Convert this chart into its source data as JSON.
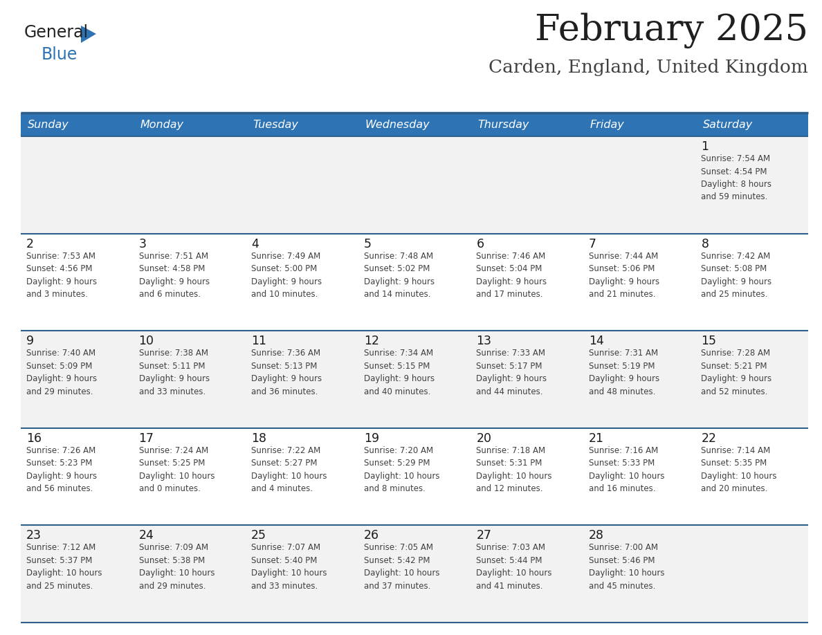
{
  "title": "February 2025",
  "subtitle": "Carden, England, United Kingdom",
  "header_bg_color": "#2E74B5",
  "header_text_color": "#FFFFFF",
  "days_of_week": [
    "Sunday",
    "Monday",
    "Tuesday",
    "Wednesday",
    "Thursday",
    "Friday",
    "Saturday"
  ],
  "title_color": "#1F1F1F",
  "subtitle_color": "#404040",
  "cell_bg_row0": "#F2F2F2",
  "cell_bg_row1": "#FFFFFF",
  "cell_bg_row2": "#F2F2F2",
  "cell_bg_row3": "#FFFFFF",
  "cell_bg_row4": "#F2F2F2",
  "day_number_color": "#1a1a1a",
  "info_text_color": "#404040",
  "separator_color": "#2E5F8A",
  "logo_triangle_color": "#2E74B5",
  "calendar_data": [
    [
      {
        "day": null,
        "info": null
      },
      {
        "day": null,
        "info": null
      },
      {
        "day": null,
        "info": null
      },
      {
        "day": null,
        "info": null
      },
      {
        "day": null,
        "info": null
      },
      {
        "day": null,
        "info": null
      },
      {
        "day": 1,
        "info": "Sunrise: 7:54 AM\nSunset: 4:54 PM\nDaylight: 8 hours\nand 59 minutes."
      }
    ],
    [
      {
        "day": 2,
        "info": "Sunrise: 7:53 AM\nSunset: 4:56 PM\nDaylight: 9 hours\nand 3 minutes."
      },
      {
        "day": 3,
        "info": "Sunrise: 7:51 AM\nSunset: 4:58 PM\nDaylight: 9 hours\nand 6 minutes."
      },
      {
        "day": 4,
        "info": "Sunrise: 7:49 AM\nSunset: 5:00 PM\nDaylight: 9 hours\nand 10 minutes."
      },
      {
        "day": 5,
        "info": "Sunrise: 7:48 AM\nSunset: 5:02 PM\nDaylight: 9 hours\nand 14 minutes."
      },
      {
        "day": 6,
        "info": "Sunrise: 7:46 AM\nSunset: 5:04 PM\nDaylight: 9 hours\nand 17 minutes."
      },
      {
        "day": 7,
        "info": "Sunrise: 7:44 AM\nSunset: 5:06 PM\nDaylight: 9 hours\nand 21 minutes."
      },
      {
        "day": 8,
        "info": "Sunrise: 7:42 AM\nSunset: 5:08 PM\nDaylight: 9 hours\nand 25 minutes."
      }
    ],
    [
      {
        "day": 9,
        "info": "Sunrise: 7:40 AM\nSunset: 5:09 PM\nDaylight: 9 hours\nand 29 minutes."
      },
      {
        "day": 10,
        "info": "Sunrise: 7:38 AM\nSunset: 5:11 PM\nDaylight: 9 hours\nand 33 minutes."
      },
      {
        "day": 11,
        "info": "Sunrise: 7:36 AM\nSunset: 5:13 PM\nDaylight: 9 hours\nand 36 minutes."
      },
      {
        "day": 12,
        "info": "Sunrise: 7:34 AM\nSunset: 5:15 PM\nDaylight: 9 hours\nand 40 minutes."
      },
      {
        "day": 13,
        "info": "Sunrise: 7:33 AM\nSunset: 5:17 PM\nDaylight: 9 hours\nand 44 minutes."
      },
      {
        "day": 14,
        "info": "Sunrise: 7:31 AM\nSunset: 5:19 PM\nDaylight: 9 hours\nand 48 minutes."
      },
      {
        "day": 15,
        "info": "Sunrise: 7:28 AM\nSunset: 5:21 PM\nDaylight: 9 hours\nand 52 minutes."
      }
    ],
    [
      {
        "day": 16,
        "info": "Sunrise: 7:26 AM\nSunset: 5:23 PM\nDaylight: 9 hours\nand 56 minutes."
      },
      {
        "day": 17,
        "info": "Sunrise: 7:24 AM\nSunset: 5:25 PM\nDaylight: 10 hours\nand 0 minutes."
      },
      {
        "day": 18,
        "info": "Sunrise: 7:22 AM\nSunset: 5:27 PM\nDaylight: 10 hours\nand 4 minutes."
      },
      {
        "day": 19,
        "info": "Sunrise: 7:20 AM\nSunset: 5:29 PM\nDaylight: 10 hours\nand 8 minutes."
      },
      {
        "day": 20,
        "info": "Sunrise: 7:18 AM\nSunset: 5:31 PM\nDaylight: 10 hours\nand 12 minutes."
      },
      {
        "day": 21,
        "info": "Sunrise: 7:16 AM\nSunset: 5:33 PM\nDaylight: 10 hours\nand 16 minutes."
      },
      {
        "day": 22,
        "info": "Sunrise: 7:14 AM\nSunset: 5:35 PM\nDaylight: 10 hours\nand 20 minutes."
      }
    ],
    [
      {
        "day": 23,
        "info": "Sunrise: 7:12 AM\nSunset: 5:37 PM\nDaylight: 10 hours\nand 25 minutes."
      },
      {
        "day": 24,
        "info": "Sunrise: 7:09 AM\nSunset: 5:38 PM\nDaylight: 10 hours\nand 29 minutes."
      },
      {
        "day": 25,
        "info": "Sunrise: 7:07 AM\nSunset: 5:40 PM\nDaylight: 10 hours\nand 33 minutes."
      },
      {
        "day": 26,
        "info": "Sunrise: 7:05 AM\nSunset: 5:42 PM\nDaylight: 10 hours\nand 37 minutes."
      },
      {
        "day": 27,
        "info": "Sunrise: 7:03 AM\nSunset: 5:44 PM\nDaylight: 10 hours\nand 41 minutes."
      },
      {
        "day": 28,
        "info": "Sunrise: 7:00 AM\nSunset: 5:46 PM\nDaylight: 10 hours\nand 45 minutes."
      },
      {
        "day": null,
        "info": null
      }
    ]
  ]
}
